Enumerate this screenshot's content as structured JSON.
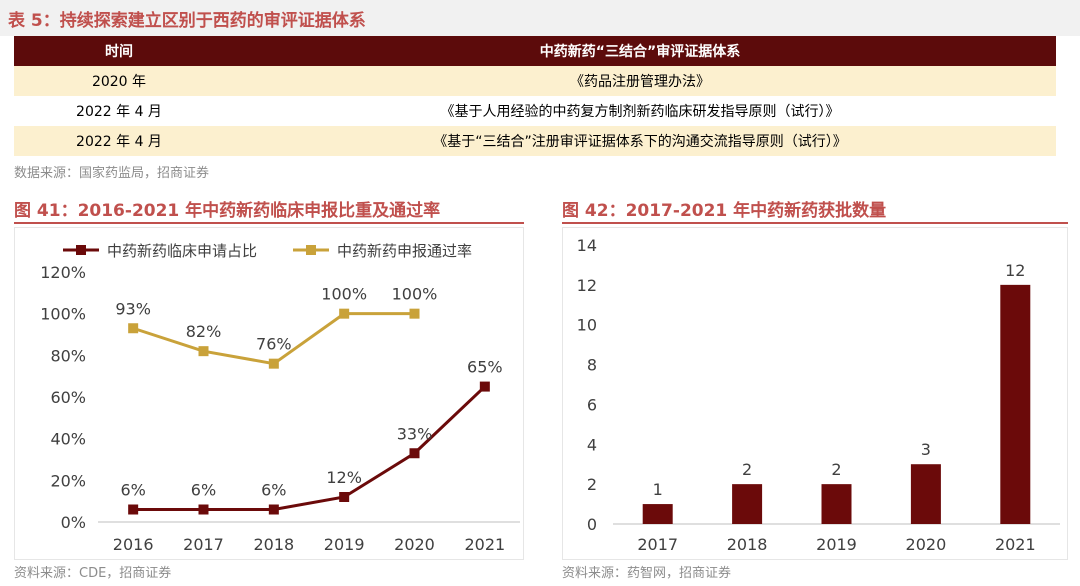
{
  "table": {
    "title": "表 5：持续探索建立区别于西药的审评证据体系",
    "headers": [
      "时间",
      "中药新药“三结合”审评证据体系"
    ],
    "rows": [
      [
        "2020 年",
        "《药品注册管理办法》"
      ],
      [
        "2022 年 4 月",
        "《基于人用经验的中药复方制剂新药临床研发指导原则（试行）》"
      ],
      [
        "2022 年 4 月",
        "《基于“三结合”注册审评证据体系下的沟通交流指导原则（试行）》"
      ]
    ],
    "source": "数据来源：国家药监局，招商证券"
  },
  "fig41": {
    "title": "图 41：2016-2021 年中药新药临床申报比重及通过率",
    "source": "资料来源：CDE，招商证券"
  },
  "fig42": {
    "title": "图 42：2017-2021 年中药新药获批数量",
    "source": "资料来源：药智网，招商证券"
  },
  "colors": {
    "dark_red": "#6b0a0a",
    "gold": "#c9a23a",
    "title_red": "#c0504d"
  },
  "chart_data": [
    {
      "type": "line",
      "x": [
        "2016",
        "2017",
        "2018",
        "2019",
        "2020",
        "2021"
      ],
      "series": [
        {
          "name": "中药新药临床申请占比",
          "values": [
            6,
            6,
            6,
            12,
            33,
            65
          ],
          "labels": [
            "6%",
            "6%",
            "6%",
            "12%",
            "33%",
            "65%"
          ],
          "color": "#6b0a0a"
        },
        {
          "name": "中药新药申报通过率",
          "values": [
            93,
            82,
            76,
            100,
            100,
            null
          ],
          "labels": [
            "93%",
            "82%",
            "76%",
            "100%",
            "100%",
            ""
          ],
          "color": "#c9a23a"
        }
      ],
      "ylim": [
        0,
        120
      ],
      "yticks": [
        "0%",
        "20%",
        "40%",
        "60%",
        "80%",
        "100%",
        "120%"
      ],
      "legend": "top"
    },
    {
      "type": "bar",
      "categories": [
        "2017",
        "2018",
        "2019",
        "2020",
        "2021"
      ],
      "values": [
        1,
        2,
        2,
        3,
        12
      ],
      "ylim": [
        0,
        14
      ],
      "yticks": [
        "0",
        "2",
        "4",
        "6",
        "8",
        "10",
        "12",
        "14"
      ],
      "color": "#6b0a0a"
    }
  ]
}
